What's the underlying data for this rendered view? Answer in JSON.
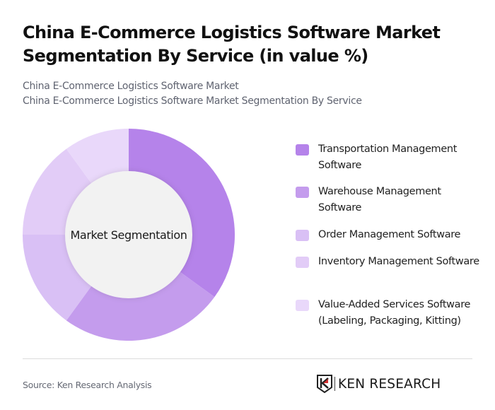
{
  "header": {
    "title": "China E-Commerce Logistics Software Market Segmentation By Service (in value %)",
    "subtitle_line1": "China E-Commerce Logistics Software Market",
    "subtitle_line2": "China E-Commerce Logistics Software Market Segmentation By Service"
  },
  "chart": {
    "center_label": "Market Segmentation"
  },
  "legend": {
    "items": [
      {
        "label": "Transportation Management Software",
        "color": "#b583ea"
      },
      {
        "label": "Warehouse Management Software",
        "color": "#c49ced"
      },
      {
        "label": "Order Management Software",
        "color": "#d9c0f5"
      },
      {
        "label": "Inventory Management Software",
        "color": "#e2ccf7"
      },
      {
        "label": "Value-Added Services Software (Labeling, Packaging, Kitting)",
        "color": "#e9d8fa"
      }
    ]
  },
  "footer": {
    "source": "Source: Ken Research Analysis",
    "logo_text": "KEN RESEARCH"
  },
  "chart_data": {
    "type": "pie",
    "title": "China E-Commerce Logistics Software Market Segmentation By Service (in value %)",
    "subtitle": "China E-Commerce Logistics Software Market Segmentation By Service",
    "donut": true,
    "center_label": "Market Segmentation",
    "categories": [
      "Transportation Management Software",
      "Warehouse Management Software",
      "Order Management Software",
      "Inventory Management Software",
      "Value-Added Services Software (Labeling, Packaging, Kitting)"
    ],
    "values": [
      35,
      25,
      15,
      15,
      10
    ],
    "colors": [
      "#b583ea",
      "#c49ced",
      "#d9c0f5",
      "#e2ccf7",
      "#e9d8fa"
    ],
    "legend_position": "right",
    "unit": "%",
    "source": "Source: Ken Research Analysis"
  }
}
